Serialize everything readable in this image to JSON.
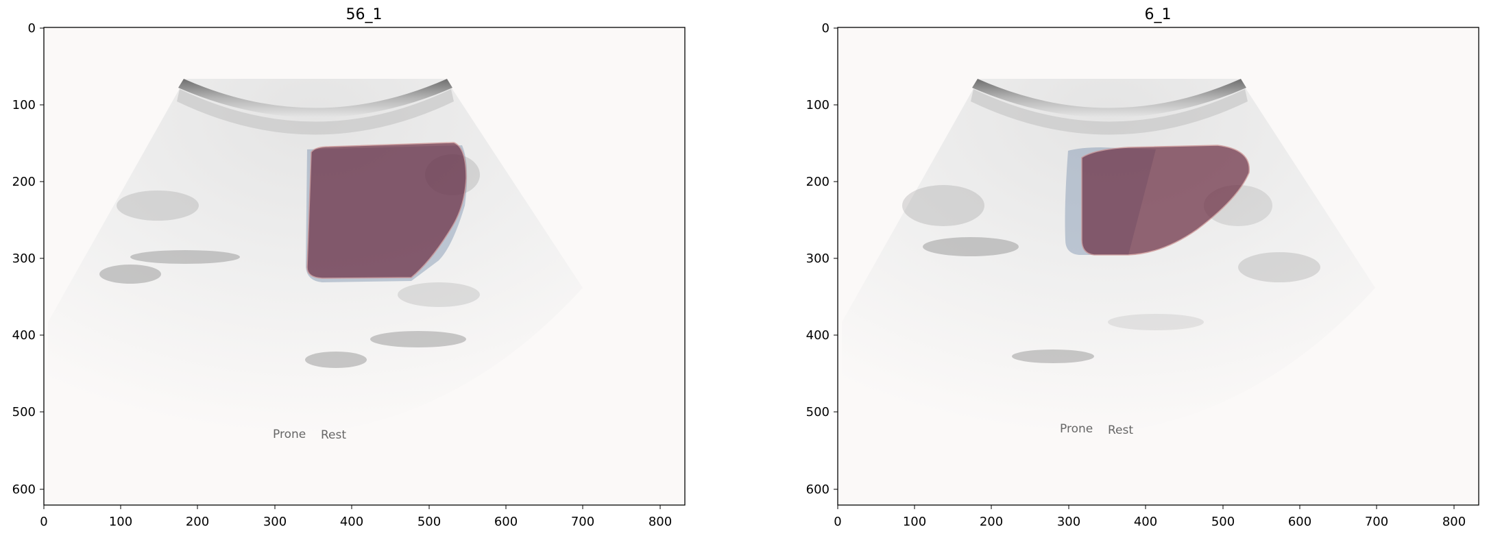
{
  "figure": {
    "panels": [
      {
        "title": "56_1",
        "overlay_text": [
          "Prone",
          "Rest"
        ],
        "xticks": [
          "0",
          "100",
          "200",
          "300",
          "400",
          "500",
          "600",
          "700",
          "800"
        ],
        "yticks": [
          "0",
          "100",
          "200",
          "300",
          "400",
          "500",
          "600"
        ]
      },
      {
        "title": "6_1",
        "overlay_text": [
          "Prone",
          "Rest"
        ],
        "xticks": [
          "0",
          "100",
          "200",
          "300",
          "400",
          "500",
          "600",
          "700",
          "800"
        ],
        "yticks": [
          "0",
          "100",
          "200",
          "300",
          "400",
          "500",
          "600"
        ]
      }
    ],
    "colors": {
      "mask_red": "#8a2d3a",
      "mask_blue": "#6f88a8",
      "background": "#fbf9f8",
      "probe": "#8a8a8a"
    }
  }
}
